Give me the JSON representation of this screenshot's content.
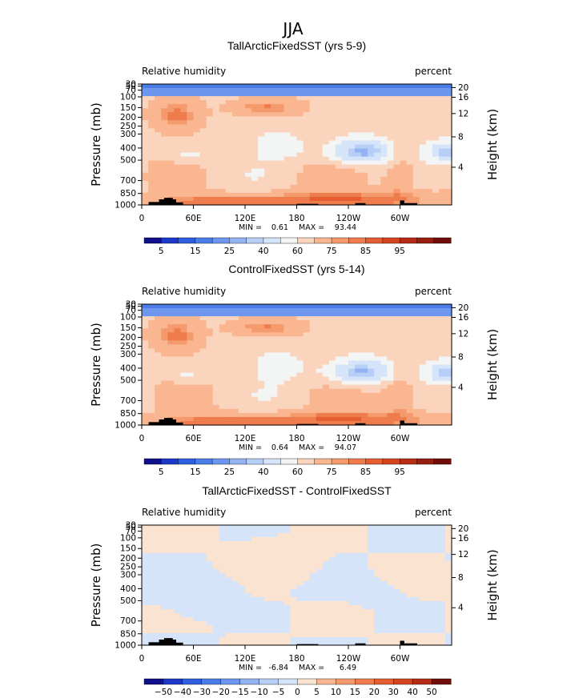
{
  "figure": {
    "supertitle": "JJA"
  },
  "chart_data": [
    {
      "type": "heatmap",
      "title": "TallArcticFixedSST (yrs 5-9)",
      "left_label": "Relative humidity",
      "right_label": "percent",
      "ylabel": "Pressure (mb)",
      "ylabel_right": "Height (km)",
      "x_ticks": [
        "0",
        "60E",
        "120E",
        "180",
        "120W",
        "60W"
      ],
      "x_tick_values": [
        0,
        60,
        120,
        180,
        240,
        300
      ],
      "xlim": [
        0,
        360
      ],
      "y_ticks": [
        "30",
        "50",
        "70",
        "100",
        "150",
        "200",
        "250",
        "300",
        "400",
        "500",
        "700",
        "850",
        "1000"
      ],
      "y_tick_values": [
        30,
        50,
        70,
        100,
        150,
        200,
        250,
        300,
        400,
        500,
        700,
        850,
        1000
      ],
      "ylim": [
        30,
        1000
      ],
      "height_ticks": [
        "20",
        "16",
        "12",
        "8",
        "4"
      ],
      "height_tick_values": [
        20,
        16,
        12,
        8,
        4
      ],
      "stats": {
        "min_label": "MIN =",
        "min": "0.61",
        "max_label": "MAX =",
        "max": "93.44"
      },
      "colorbar": {
        "labels": [
          "5",
          "15",
          "25",
          "40",
          "60",
          "75",
          "85",
          "95"
        ],
        "levels": [
          3,
          5,
          10,
          15,
          20,
          25,
          30,
          40,
          50,
          60,
          70,
          75,
          80,
          85,
          90,
          95,
          97
        ],
        "colors": [
          "#10108a",
          "#1c38c8",
          "#2f5ee0",
          "#4a7de8",
          "#6d97ef",
          "#93b3f3",
          "#b7cff7",
          "#d5e4f9",
          "#f3f4f4",
          "#fbd4bd",
          "#f9b690",
          "#f59a6c",
          "#ef7c4d",
          "#e55e31",
          "#d3441f",
          "#b62c14",
          "#961e0e",
          "#6f0e08"
        ]
      },
      "field": "rh_control",
      "offset": 0.3
    },
    {
      "type": "heatmap",
      "title": "ControlFixedSST (yrs 5-14)",
      "left_label": "Relative humidity",
      "right_label": "percent",
      "ylabel": "Pressure (mb)",
      "ylabel_right": "Height (km)",
      "x_ticks": [
        "0",
        "60E",
        "120E",
        "180",
        "120W",
        "60W"
      ],
      "x_tick_values": [
        0,
        60,
        120,
        180,
        240,
        300
      ],
      "xlim": [
        0,
        360
      ],
      "y_ticks": [
        "30",
        "50",
        "70",
        "100",
        "150",
        "200",
        "250",
        "300",
        "400",
        "500",
        "700",
        "850",
        "1000"
      ],
      "y_tick_values": [
        30,
        50,
        70,
        100,
        150,
        200,
        250,
        300,
        400,
        500,
        700,
        850,
        1000
      ],
      "ylim": [
        30,
        1000
      ],
      "height_ticks": [
        "20",
        "16",
        "12",
        "8",
        "4"
      ],
      "height_tick_values": [
        20,
        16,
        12,
        8,
        4
      ],
      "stats": {
        "min_label": "MIN =",
        "min": "0.64",
        "max_label": "MAX =",
        "max": "94.07"
      },
      "colorbar": {
        "labels": [
          "5",
          "15",
          "25",
          "40",
          "60",
          "75",
          "85",
          "95"
        ],
        "levels": [
          3,
          5,
          10,
          15,
          20,
          25,
          30,
          40,
          50,
          60,
          70,
          75,
          80,
          85,
          90,
          95,
          97
        ],
        "colors": [
          "#10108a",
          "#1c38c8",
          "#2f5ee0",
          "#4a7de8",
          "#6d97ef",
          "#93b3f3",
          "#b7cff7",
          "#d5e4f9",
          "#f3f4f4",
          "#fbd4bd",
          "#f9b690",
          "#f59a6c",
          "#ef7c4d",
          "#e55e31",
          "#d3441f",
          "#b62c14",
          "#961e0e",
          "#6f0e08"
        ]
      },
      "field": "rh_control",
      "offset": 0
    },
    {
      "type": "heatmap",
      "title": "TallArcticFixedSST - ControlFixedSST",
      "left_label": "Relative humidity",
      "right_label": "percent",
      "ylabel": "Pressure (mb)",
      "ylabel_right": "Height (km)",
      "x_ticks": [
        "0",
        "60E",
        "120E",
        "180",
        "120W",
        "60W"
      ],
      "x_tick_values": [
        0,
        60,
        120,
        180,
        240,
        300
      ],
      "xlim": [
        0,
        360
      ],
      "y_ticks": [
        "30",
        "50",
        "70",
        "100",
        "150",
        "200",
        "250",
        "300",
        "400",
        "500",
        "700",
        "850",
        "1000"
      ],
      "y_tick_values": [
        30,
        50,
        70,
        100,
        150,
        200,
        250,
        300,
        400,
        500,
        700,
        850,
        1000
      ],
      "ylim": [
        30,
        1000
      ],
      "height_ticks": [
        "20",
        "16",
        "12",
        "8",
        "4"
      ],
      "height_tick_values": [
        20,
        16,
        12,
        8,
        4
      ],
      "stats": {
        "min_label": "MIN =",
        "min": "-6.84",
        "max_label": "MAX =",
        "max": "6.49"
      },
      "colorbar": {
        "labels": [
          "−50",
          "−40",
          "−30",
          "−20",
          "−15",
          "−10",
          "−5",
          "0",
          "5",
          "10",
          "15",
          "20",
          "30",
          "40",
          "50"
        ],
        "levels": [
          -50,
          -40,
          -30,
          -20,
          -15,
          -10,
          -5,
          0,
          5,
          10,
          15,
          20,
          30,
          40,
          50
        ],
        "colors": [
          "#10108a",
          "#1c38c8",
          "#2f5ee0",
          "#4a7de8",
          "#6d97ef",
          "#93b3f3",
          "#b7cff7",
          "#d5e4f9",
          "#fbe3d1",
          "#f9b690",
          "#f59a6c",
          "#ef7c4d",
          "#e55e31",
          "#d3441f",
          "#b62c14",
          "#6f0e08"
        ]
      },
      "field": "rh_diff",
      "offset": 0
    }
  ]
}
